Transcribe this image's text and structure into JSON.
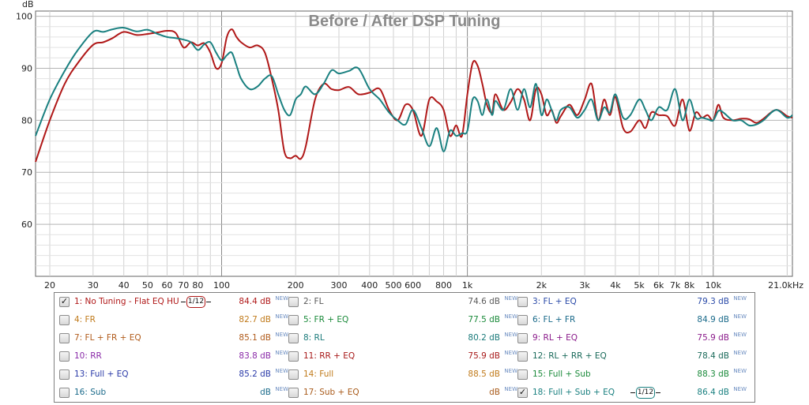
{
  "chart_data": {
    "type": "line",
    "title": "Before / After DSP Tuning",
    "ylabel": "dB",
    "xscale": "log",
    "xlim": [
      17.5,
      21000
    ],
    "ylim": [
      50,
      101
    ],
    "grid": true,
    "x_tick_labels": [
      {
        "x": 20,
        "label": "20"
      },
      {
        "x": 30,
        "label": "30"
      },
      {
        "x": 40,
        "label": "40"
      },
      {
        "x": 50,
        "label": "50"
      },
      {
        "x": 60,
        "label": "60"
      },
      {
        "x": 70,
        "label": "70"
      },
      {
        "x": 80,
        "label": "80"
      },
      {
        "x": 100,
        "label": "100"
      },
      {
        "x": 200,
        "label": "200"
      },
      {
        "x": 300,
        "label": "300"
      },
      {
        "x": 400,
        "label": "400"
      },
      {
        "x": 500,
        "label": "500"
      },
      {
        "x": 600,
        "label": "600"
      },
      {
        "x": 800,
        "label": "800"
      },
      {
        "x": 1000,
        "label": "1k"
      },
      {
        "x": 2000,
        "label": "2k"
      },
      {
        "x": 3000,
        "label": "3k"
      },
      {
        "x": 4000,
        "label": "4k"
      },
      {
        "x": 5000,
        "label": "5k"
      },
      {
        "x": 6000,
        "label": "6k"
      },
      {
        "x": 7000,
        "label": "7k"
      },
      {
        "x": 8000,
        "label": "8k"
      },
      {
        "x": 10000,
        "label": "10k"
      },
      {
        "x": 21000,
        "label": "21.0kHz"
      }
    ],
    "y_tick_labels": [
      {
        "y": 60,
        "label": "60"
      },
      {
        "y": 70,
        "label": "70"
      },
      {
        "y": 80,
        "label": "80"
      },
      {
        "y": 90,
        "label": "90"
      },
      {
        "y": 100,
        "label": "100"
      }
    ],
    "series": [
      {
        "name": "1: No Tuning - Flat EQ HU",
        "color": "#b01818",
        "x": [
          17.5,
          20,
          23,
          26,
          30,
          33,
          36,
          40,
          45,
          50,
          55,
          60,
          65,
          70,
          75,
          80,
          85,
          90,
          95,
          100,
          105,
          110,
          115,
          120,
          130,
          140,
          150,
          160,
          170,
          180,
          190,
          200,
          210,
          220,
          240,
          260,
          280,
          300,
          330,
          360,
          400,
          440,
          480,
          520,
          560,
          600,
          650,
          700,
          750,
          800,
          850,
          900,
          950,
          1000,
          1050,
          1100,
          1150,
          1200,
          1260,
          1300,
          1400,
          1500,
          1600,
          1700,
          1800,
          1900,
          2000,
          2100,
          2200,
          2300,
          2400,
          2600,
          2800,
          3000,
          3200,
          3400,
          3600,
          3800,
          4000,
          4300,
          4600,
          5000,
          5300,
          5600,
          6000,
          6500,
          7000,
          7500,
          8000,
          8500,
          9000,
          9500,
          10000,
          10500,
          11000,
          12000,
          13000,
          14000,
          15000,
          16000,
          18000,
          20000,
          21000
        ],
        "y": [
          72,
          80,
          87,
          91,
          94.5,
          95,
          95.8,
          97,
          96.4,
          96.6,
          96.9,
          97.2,
          96.8,
          94,
          95,
          94.4,
          94.8,
          93,
          90,
          91,
          96,
          97.5,
          96,
          95,
          94,
          94.4,
          93,
          88,
          82,
          74,
          72.7,
          73.2,
          72.6,
          75,
          84,
          87,
          86,
          85.8,
          86.4,
          85,
          85.3,
          86,
          82,
          80,
          83,
          82,
          77,
          84,
          83.6,
          82,
          77,
          79,
          77,
          85,
          91,
          90.5,
          87,
          83,
          81.5,
          85,
          82,
          83.5,
          86,
          84,
          80,
          86,
          85,
          81,
          82,
          79.5,
          80.8,
          83,
          81,
          84,
          87,
          80,
          84,
          81,
          84.5,
          78.5,
          77.8,
          80,
          78.5,
          81.5,
          81,
          80.8,
          79,
          84,
          78,
          81.5,
          80.5,
          81,
          80,
          83,
          80.5,
          80,
          80.3,
          80.2,
          79.5,
          80.3,
          82,
          80.8,
          80.5
        ]
      },
      {
        "name": "18: Full + Sub + EQ",
        "color": "#1a8080",
        "x": [
          17.5,
          20,
          23,
          26,
          30,
          33,
          36,
          40,
          45,
          50,
          55,
          60,
          65,
          70,
          75,
          80,
          85,
          90,
          95,
          100,
          105,
          110,
          115,
          120,
          130,
          140,
          150,
          160,
          170,
          180,
          190,
          200,
          210,
          220,
          240,
          260,
          280,
          300,
          330,
          360,
          400,
          440,
          480,
          520,
          560,
          600,
          650,
          700,
          750,
          800,
          850,
          900,
          950,
          1000,
          1050,
          1100,
          1150,
          1200,
          1260,
          1300,
          1400,
          1500,
          1600,
          1700,
          1800,
          1900,
          2000,
          2100,
          2200,
          2300,
          2400,
          2600,
          2800,
          3000,
          3200,
          3400,
          3600,
          3800,
          4000,
          4300,
          4600,
          5000,
          5300,
          5600,
          6000,
          6500,
          7000,
          7500,
          8000,
          8500,
          9000,
          9500,
          10000,
          10500,
          11000,
          12000,
          13000,
          14000,
          15000,
          16000,
          18000,
          20000,
          21000
        ],
        "y": [
          77,
          84,
          89.5,
          93.5,
          97,
          97,
          97.5,
          97.8,
          97.1,
          97.4,
          96.6,
          96,
          95.8,
          95.5,
          95,
          93.5,
          94.6,
          95,
          93,
          91.5,
          92.5,
          93,
          90.5,
          88,
          86,
          86.5,
          88,
          88.5,
          85,
          82,
          81,
          84,
          85,
          86.5,
          85,
          87,
          89.6,
          89,
          89.5,
          90,
          86,
          84,
          81.5,
          80,
          79.2,
          82,
          78.5,
          75,
          78.5,
          74,
          78,
          77,
          77.5,
          78,
          84,
          83.7,
          81,
          84,
          81,
          83.7,
          82,
          86,
          82,
          86,
          82.5,
          87,
          81,
          84,
          82,
          80,
          82,
          82.5,
          80.5,
          82,
          84,
          80,
          82.5,
          81.5,
          85,
          80.5,
          81,
          84,
          82,
          80,
          82.5,
          82,
          86,
          80,
          84,
          80.5,
          80.5,
          80.2,
          80,
          81.8,
          81.5,
          80,
          80,
          79,
          79.2,
          80,
          82,
          80.5,
          81
        ]
      }
    ]
  },
  "legend": {
    "items": [
      {
        "label": "1: No Tuning - Flat EQ HU",
        "value": "84.4 dB",
        "color": "#b01818",
        "checked": true,
        "smoothing": "1/12"
      },
      {
        "label": "2: FL",
        "value": "74.6 dB",
        "color": "#5a5a5a",
        "checked": false
      },
      {
        "label": "3: FL + EQ",
        "value": "79.3 dB",
        "color": "#2a4aa8",
        "checked": false
      },
      {
        "label": "4: FR",
        "value": "82.7 dB",
        "color": "#c07a1a",
        "checked": false
      },
      {
        "label": "5: FR + EQ",
        "value": "77.5 dB",
        "color": "#1a8a3a",
        "checked": false
      },
      {
        "label": "6: FL + FR",
        "value": "84.9 dB",
        "color": "#1a6a8a",
        "checked": false
      },
      {
        "label": "7: FL + FR + EQ",
        "value": "85.1 dB",
        "color": "#b05a1a",
        "checked": false
      },
      {
        "label": "8: RL",
        "value": "80.2 dB",
        "color": "#1a7a7a",
        "checked": false
      },
      {
        "label": "9: RL + EQ",
        "value": "75.9 dB",
        "color": "#8a1a8a",
        "checked": false
      },
      {
        "label": "10: RR",
        "value": "83.8 dB",
        "color": "#8a2aa8",
        "checked": false
      },
      {
        "label": "11: RR + EQ",
        "value": "75.9 dB",
        "color": "#a81a1a",
        "checked": false
      },
      {
        "label": "12: RL + RR + EQ",
        "value": "78.4 dB",
        "color": "#1a6a5a",
        "checked": false
      },
      {
        "label": "13: Full + EQ",
        "value": "85.2 dB",
        "color": "#2a3aa8",
        "checked": false
      },
      {
        "label": "14: Full",
        "value": "88.5 dB",
        "color": "#c07a1a",
        "checked": false
      },
      {
        "label": "15: Full + Sub",
        "value": "88.3 dB",
        "color": "#1a8a3a",
        "checked": false
      },
      {
        "label": "16: Sub",
        "value": "dB",
        "color": "#1a6a8a",
        "checked": false
      },
      {
        "label": "17: Sub + EQ",
        "value": "dB",
        "color": "#a85a1a",
        "checked": false
      },
      {
        "label": "18: Full + Sub + EQ",
        "value": "86.4 dB",
        "color": "#1a8080",
        "checked": true,
        "smoothing": "1/12"
      }
    ],
    "new_tag": "NEW",
    "check_mark": "✓"
  }
}
